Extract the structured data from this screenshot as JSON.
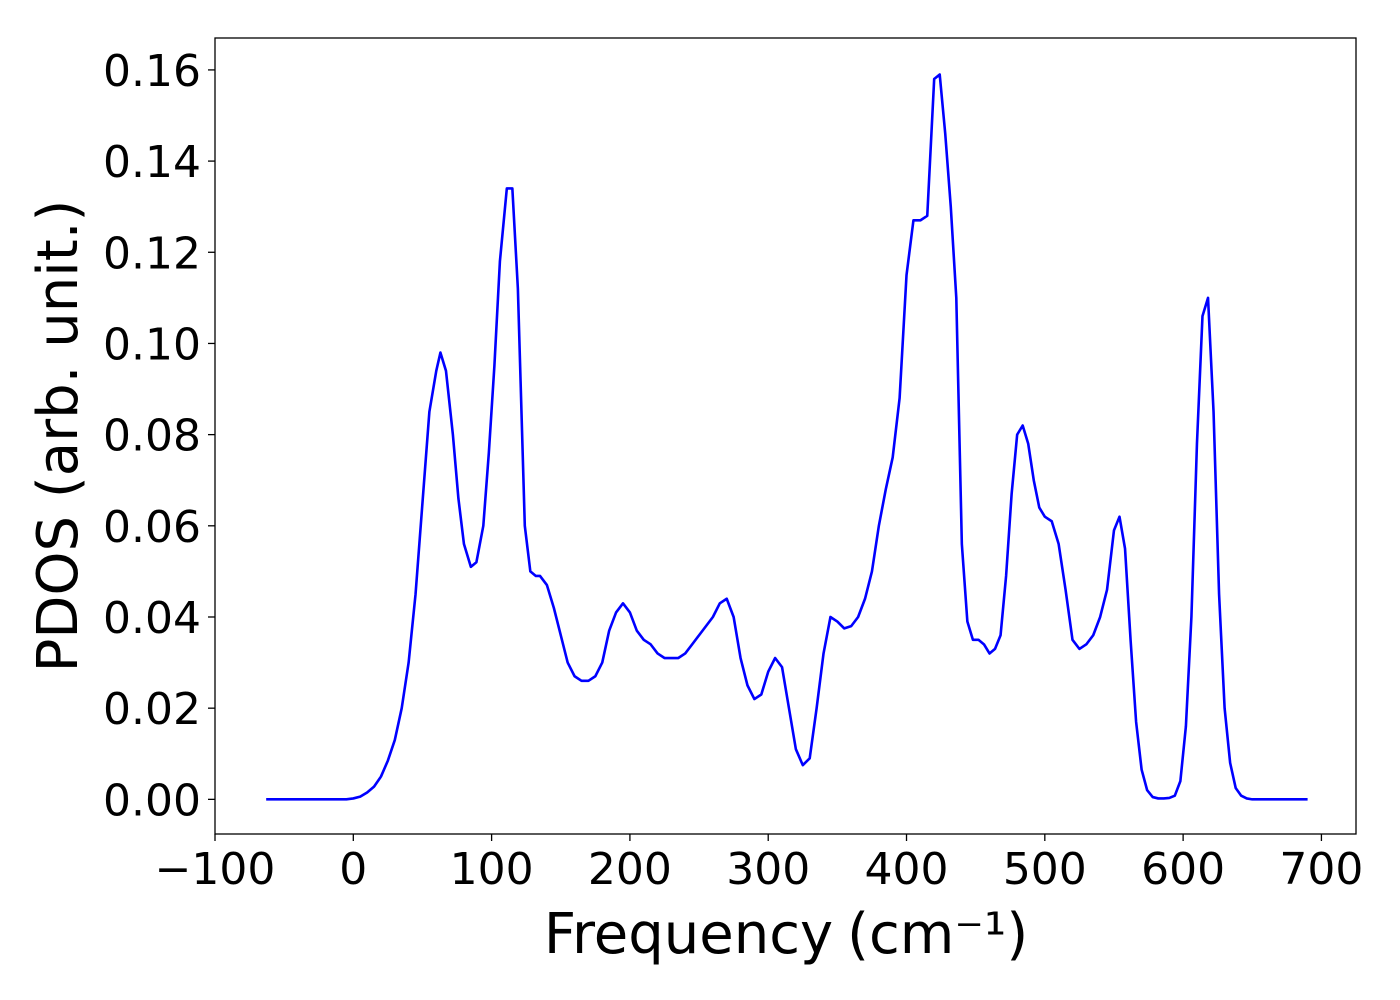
{
  "chart_data": {
    "type": "line",
    "title": "",
    "xlabel": "Frequency",
    "xlabel_unit": "(cm⁻¹)",
    "ylabel": "PDOS (arb. unit.)",
    "xlim": [
      -100,
      725
    ],
    "ylim": [
      -0.0076,
      0.167
    ],
    "xticks": [
      -100,
      0,
      100,
      200,
      300,
      400,
      500,
      600,
      700
    ],
    "xtick_labels": [
      "−100",
      "0",
      "100",
      "200",
      "300",
      "400",
      "500",
      "600",
      "700"
    ],
    "yticks": [
      0.0,
      0.02,
      0.04,
      0.06,
      0.08,
      0.1,
      0.12,
      0.14,
      0.16
    ],
    "ytick_labels": [
      "0.00",
      "0.02",
      "0.04",
      "0.06",
      "0.08",
      "0.10",
      "0.12",
      "0.14",
      "0.16"
    ],
    "grid": false,
    "legend": "none",
    "line_color": "#0000ff",
    "series": [
      {
        "x": [
          -63,
          -40,
          -20,
          -5,
          0,
          5,
          10,
          15,
          20,
          25,
          30,
          35,
          40,
          45,
          50,
          55,
          60,
          63,
          67,
          72,
          76,
          80,
          85,
          89,
          94,
          98,
          102,
          106,
          111,
          115,
          119,
          124,
          128,
          132,
          135,
          140,
          145,
          150,
          155,
          160,
          165,
          170,
          175,
          180,
          185,
          190,
          195,
          200,
          205,
          210,
          215,
          220,
          225,
          230,
          235,
          240,
          245,
          250,
          255,
          260,
          265,
          270,
          275,
          280,
          285,
          290,
          295,
          300,
          305,
          310,
          315,
          320,
          325,
          330,
          335,
          340,
          345,
          350,
          355,
          360,
          365,
          370,
          375,
          380,
          385,
          390,
          395,
          400,
          405,
          410,
          415,
          420,
          424,
          428,
          432,
          436,
          440,
          444,
          448,
          452,
          456,
          460,
          464,
          468,
          472,
          476,
          480,
          484,
          488,
          492,
          496,
          500,
          505,
          510,
          515,
          520,
          525,
          530,
          535,
          540,
          545,
          550,
          554,
          558,
          562,
          566,
          570,
          574,
          578,
          582,
          586,
          590,
          594,
          598,
          602,
          606,
          610,
          614,
          618,
          622,
          626,
          630,
          634,
          638,
          642,
          646,
          650,
          660,
          680,
          690
        ],
        "y": [
          0.0,
          0.0,
          0.0,
          0.0,
          0.0002,
          0.0006,
          0.0015,
          0.0028,
          0.005,
          0.0085,
          0.013,
          0.02,
          0.03,
          0.045,
          0.065,
          0.085,
          0.094,
          0.098,
          0.094,
          0.08,
          0.066,
          0.056,
          0.051,
          0.052,
          0.06,
          0.076,
          0.095,
          0.118,
          0.134,
          0.134,
          0.112,
          0.06,
          0.05,
          0.049,
          0.049,
          0.047,
          0.042,
          0.036,
          0.03,
          0.027,
          0.026,
          0.026,
          0.027,
          0.03,
          0.037,
          0.041,
          0.043,
          0.041,
          0.037,
          0.035,
          0.034,
          0.032,
          0.031,
          0.031,
          0.031,
          0.032,
          0.034,
          0.036,
          0.038,
          0.04,
          0.043,
          0.044,
          0.04,
          0.031,
          0.025,
          0.022,
          0.023,
          0.028,
          0.031,
          0.029,
          0.02,
          0.011,
          0.0075,
          0.009,
          0.02,
          0.032,
          0.04,
          0.039,
          0.0375,
          0.038,
          0.04,
          0.044,
          0.05,
          0.06,
          0.068,
          0.075,
          0.088,
          0.115,
          0.127,
          0.127,
          0.128,
          0.158,
          0.159,
          0.146,
          0.13,
          0.11,
          0.056,
          0.039,
          0.035,
          0.035,
          0.034,
          0.032,
          0.033,
          0.036,
          0.049,
          0.067,
          0.08,
          0.082,
          0.078,
          0.07,
          0.064,
          0.062,
          0.061,
          0.056,
          0.046,
          0.035,
          0.033,
          0.034,
          0.036,
          0.04,
          0.046,
          0.059,
          0.062,
          0.055,
          0.035,
          0.017,
          0.0065,
          0.002,
          0.0005,
          0.0002,
          0.0002,
          0.0003,
          0.0008,
          0.004,
          0.016,
          0.04,
          0.078,
          0.106,
          0.11,
          0.085,
          0.045,
          0.02,
          0.008,
          0.0025,
          0.0008,
          0.0002,
          0.0,
          0.0,
          0.0,
          0.0
        ]
      }
    ]
  }
}
